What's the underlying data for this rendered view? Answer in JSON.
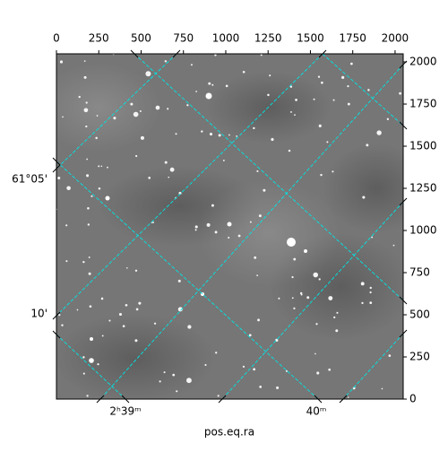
{
  "chart_data": {
    "type": "image",
    "xlabel": "pos.eq.ra",
    "xlim": [
      0,
      2048
    ],
    "xticks": [
      0,
      250,
      500,
      750,
      1000,
      1250,
      1500,
      1750,
      2000
    ],
    "ylim": [
      0,
      2048
    ],
    "yticks": [
      0,
      250,
      500,
      750,
      1000,
      1250,
      1500,
      1750,
      2000
    ],
    "ra_ticks": [
      "2ʰ39ᵐ",
      "40ᵐ"
    ],
    "dec_ticks": [
      "61°05'",
      "10'"
    ]
  }
}
